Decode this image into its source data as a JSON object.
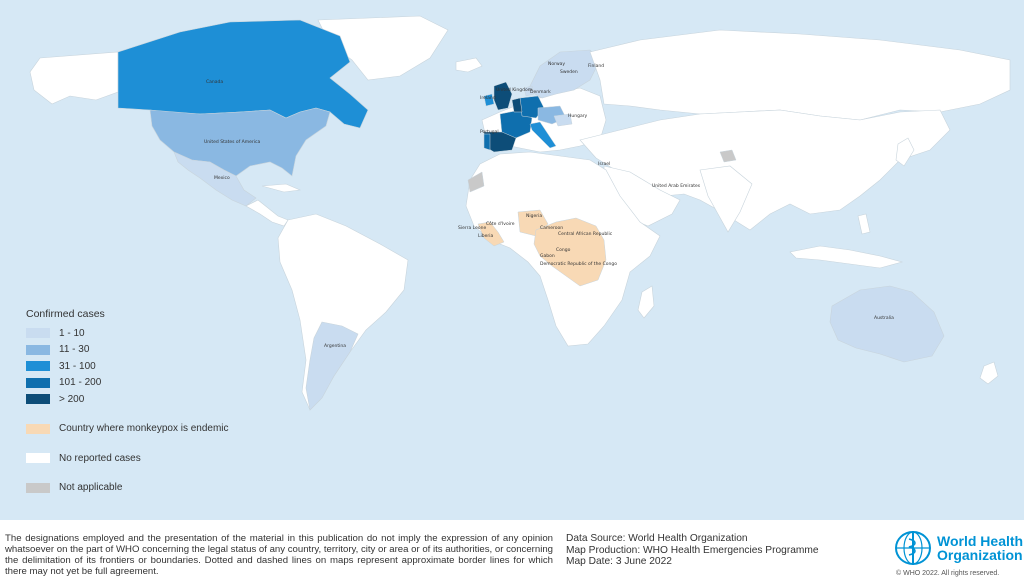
{
  "legend": {
    "title": "Confirmed cases",
    "items": [
      {
        "label": "1 - 10",
        "color": "#c9dcf0"
      },
      {
        "label": "11 - 30",
        "color": "#8ab8e2"
      },
      {
        "label": "31 - 100",
        "color": "#1e8fd6"
      },
      {
        "label": "101 - 200",
        "color": "#0f6fae"
      },
      {
        "label": "> 200",
        "color": "#0d4d78"
      }
    ],
    "endemic": {
      "label": "Country where monkeypox is endemic",
      "color": "#f8d9b5"
    },
    "none": {
      "label": "No reported cases",
      "color": "#ffffff"
    },
    "na": {
      "label": "Not applicable",
      "color": "#c9c9c9"
    }
  },
  "countries": {
    "canada": "Canada",
    "usa": "United States of America",
    "mexico": "Mexico",
    "argentina": "Argentina",
    "australia": "Australia",
    "uk": "United Kingdom",
    "ireland": "Ireland",
    "norway": "Norway",
    "sweden": "Sweden",
    "finland": "Finland",
    "denmark": "Denmark",
    "hungary": "Hungary",
    "portugal": "Portugal",
    "israel": "Israel",
    "uae": "United Arab Emirates",
    "nigeria": "Nigeria",
    "sierra_leone": "Sierra Leone",
    "cote": "Côte d'Ivoire",
    "liberia": "Liberia",
    "cameroon": "Cameroon",
    "car": "Central African Republic",
    "gabon": "Gabon",
    "congo": "Congo",
    "drc": "Democratic Republic of the Congo"
  },
  "footer": {
    "disclaimer": "The designations employed and the presentation of the material in this publication do not imply the expression of any opinion whatsoever on the part of WHO concerning the legal status of any country, territory, city or area or of its authorities, or concerning the delimitation of its frontiers or boundaries. Dotted and dashed lines on maps represent approximate border lines for which there may not yet be full agreement.",
    "data_source": "Data Source: World Health Organization",
    "map_production": "Map Production: WHO Health Emergencies Programme",
    "map_date": "Map Date: 3 June 2022",
    "logo_line1": "World Health",
    "logo_line2": "Organization",
    "copyright": "© WHO 2022. All rights reserved."
  }
}
